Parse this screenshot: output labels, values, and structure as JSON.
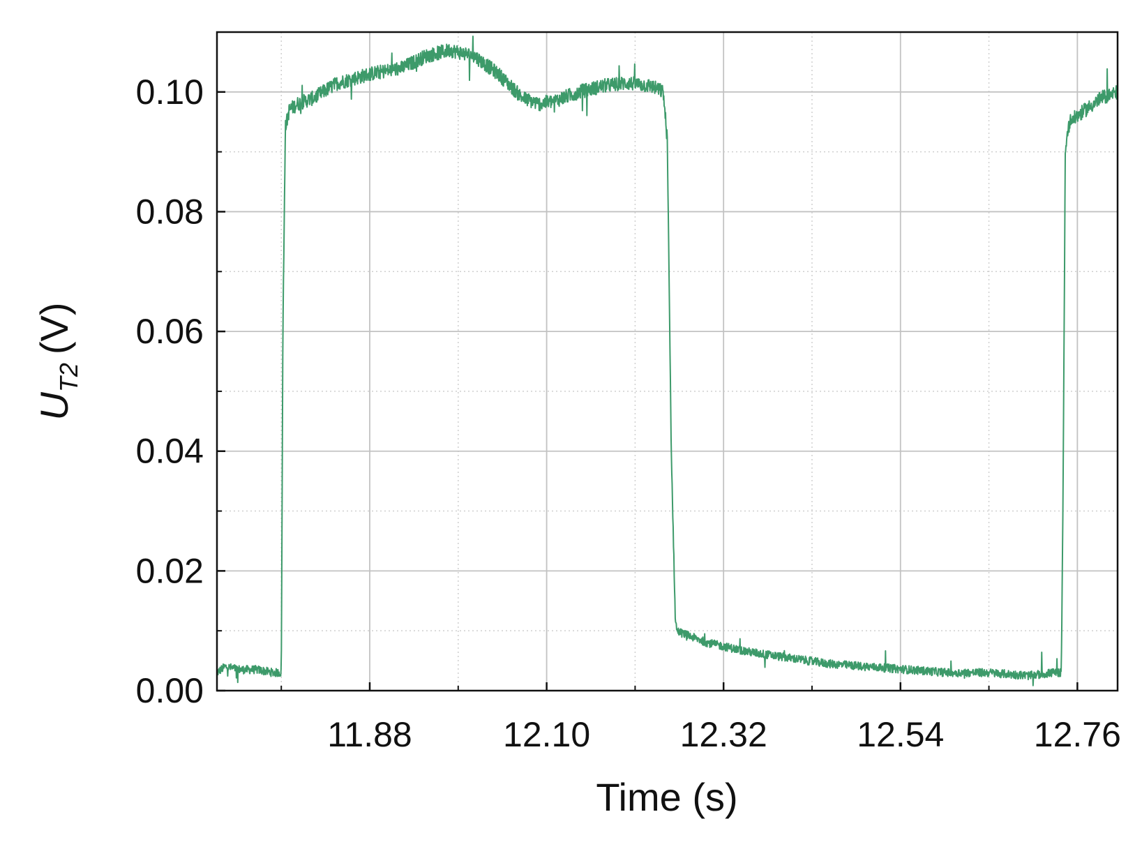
{
  "chart_data": {
    "type": "line",
    "xlabel": "Time (s)",
    "ylabel": {
      "main": "U",
      "subscript": "T2",
      "unit": "(V)"
    },
    "xlim": [
      11.69,
      12.81
    ],
    "ylim": [
      0.0,
      0.11
    ],
    "x_ticks": [
      11.88,
      12.1,
      12.32,
      12.54,
      12.76
    ],
    "x_tick_labels": [
      "11.88",
      "12.10",
      "12.32",
      "12.54",
      "12.76"
    ],
    "x_minor_ticks": [
      11.77,
      11.99,
      12.21,
      12.43,
      12.65
    ],
    "y_ticks": [
      0.0,
      0.02,
      0.04,
      0.06,
      0.08,
      0.1
    ],
    "y_tick_labels": [
      "0.00",
      "0.02",
      "0.04",
      "0.06",
      "0.08",
      "0.10"
    ],
    "y_minor_ticks": [
      0.01,
      0.03,
      0.05,
      0.07,
      0.09
    ],
    "grid": {
      "major": true,
      "minor": true
    },
    "line_color": "#3d9a6a",
    "series": [
      {
        "x": [
          11.69,
          11.7,
          11.72,
          11.74,
          11.76,
          11.77,
          11.772,
          11.775,
          11.78,
          11.79,
          11.81,
          11.84,
          11.88,
          11.92,
          11.95,
          11.98,
          12.01,
          12.04,
          12.07,
          12.09,
          12.11,
          12.14,
          12.17,
          12.2,
          12.23,
          12.245,
          12.25,
          12.255,
          12.26,
          12.262,
          12.27,
          12.3,
          12.35,
          12.4,
          12.45,
          12.5,
          12.55,
          12.6,
          12.65,
          12.7,
          12.73,
          12.74,
          12.742,
          12.745,
          12.75,
          12.77,
          12.79,
          12.81
        ],
        "y": [
          0.003,
          0.004,
          0.0035,
          0.0035,
          0.003,
          0.003,
          0.06,
          0.094,
          0.097,
          0.098,
          0.099,
          0.1015,
          0.103,
          0.104,
          0.106,
          0.107,
          0.106,
          0.103,
          0.099,
          0.098,
          0.0985,
          0.1,
          0.101,
          0.1015,
          0.101,
          0.1,
          0.092,
          0.04,
          0.012,
          0.01,
          0.0095,
          0.008,
          0.0065,
          0.0055,
          0.0045,
          0.004,
          0.0035,
          0.003,
          0.003,
          0.0025,
          0.003,
          0.003,
          0.03,
          0.09,
          0.095,
          0.097,
          0.099,
          0.1
        ]
      }
    ]
  }
}
